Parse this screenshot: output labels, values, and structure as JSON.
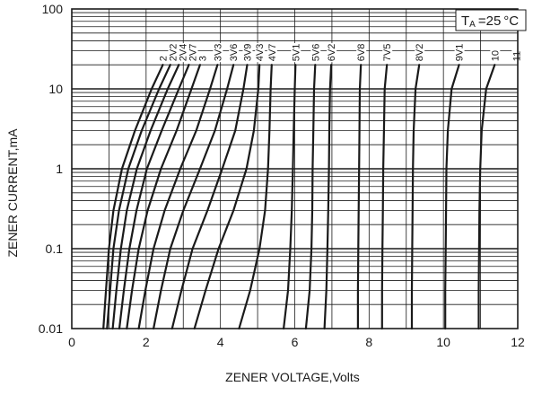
{
  "chart_data": {
    "type": "line",
    "title": "",
    "xlabel": "ZENER VOLTAGE,Volts",
    "ylabel": "ZENER CURRENT,mA",
    "xlim": [
      0,
      12
    ],
    "ylim": [
      0.01,
      100
    ],
    "y_scale": "log",
    "grid": true,
    "x_ticks": [
      "0",
      "2",
      "4",
      "6",
      "8",
      "10",
      "12"
    ],
    "y_ticks": [
      "0.01",
      "0.1",
      "1",
      "10",
      "100"
    ],
    "annotation": {
      "prefix": "T",
      "subscript": "A",
      "value": "=25",
      "unit": "°C"
    },
    "curve_current_points": [
      0.01,
      0.03,
      0.1,
      0.3,
      1,
      3,
      10,
      20
    ],
    "series": [
      {
        "name": "2",
        "voltage": [
          0.85,
          0.92,
          1.0,
          1.12,
          1.35,
          1.7,
          2.15,
          2.45
        ]
      },
      {
        "name": "2V2",
        "voltage": [
          0.95,
          1.03,
          1.12,
          1.27,
          1.52,
          1.88,
          2.35,
          2.65
        ]
      },
      {
        "name": "2V4",
        "voltage": [
          1.1,
          1.2,
          1.32,
          1.48,
          1.75,
          2.12,
          2.58,
          2.88
        ]
      },
      {
        "name": "2V7",
        "voltage": [
          1.28,
          1.4,
          1.55,
          1.74,
          2.02,
          2.42,
          2.88,
          3.15
        ]
      },
      {
        "name": "3",
        "voltage": [
          1.48,
          1.62,
          1.8,
          2.04,
          2.4,
          2.82,
          3.22,
          3.45
        ]
      },
      {
        "name": "3V3",
        "voltage": [
          1.8,
          1.98,
          2.2,
          2.5,
          2.92,
          3.35,
          3.72,
          3.92
        ]
      },
      {
        "name": "3V6",
        "voltage": [
          2.2,
          2.4,
          2.65,
          3.0,
          3.45,
          3.85,
          4.18,
          4.35
        ]
      },
      {
        "name": "3V9",
        "voltage": [
          2.7,
          2.95,
          3.25,
          3.65,
          4.05,
          4.4,
          4.62,
          4.72
        ]
      },
      {
        "name": "4V3",
        "voltage": [
          3.3,
          3.6,
          3.95,
          4.35,
          4.7,
          4.9,
          5.02,
          5.05
        ]
      },
      {
        "name": "4V7",
        "voltage": [
          4.5,
          4.8,
          5.05,
          5.2,
          5.28,
          5.32,
          5.35,
          5.38
        ]
      },
      {
        "name": "5V1",
        "voltage": [
          5.7,
          5.82,
          5.88,
          5.92,
          5.95,
          5.97,
          6.0,
          6.02
        ]
      },
      {
        "name": "5V6",
        "voltage": [
          6.3,
          6.4,
          6.45,
          6.47,
          6.48,
          6.5,
          6.52,
          6.55
        ]
      },
      {
        "name": "6V2",
        "voltage": [
          6.8,
          6.85,
          6.88,
          6.9,
          6.92,
          6.93,
          6.95,
          6.98
        ]
      },
      {
        "name": "6V8",
        "voltage": [
          7.7,
          7.7,
          7.71,
          7.72,
          7.73,
          7.74,
          7.75,
          7.78
        ]
      },
      {
        "name": "7V5",
        "voltage": [
          8.35,
          8.35,
          8.36,
          8.37,
          8.38,
          8.4,
          8.42,
          8.48
        ]
      },
      {
        "name": "8V2",
        "voltage": [
          9.15,
          9.15,
          9.16,
          9.17,
          9.18,
          9.2,
          9.25,
          9.35
        ]
      },
      {
        "name": "9V1",
        "voltage": [
          10.05,
          10.05,
          10.06,
          10.07,
          10.08,
          10.12,
          10.22,
          10.42
        ]
      },
      {
        "name": "10",
        "voltage": [
          10.95,
          10.95,
          10.96,
          10.97,
          10.99,
          11.03,
          11.15,
          11.38
        ]
      },
      {
        "name": "11",
        "voltage": []
      }
    ]
  }
}
